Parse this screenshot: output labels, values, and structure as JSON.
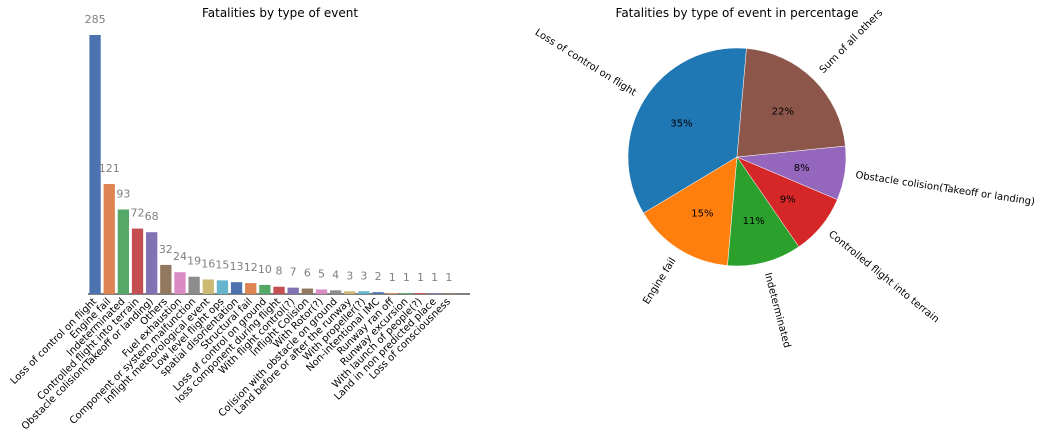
{
  "chart_data": [
    {
      "type": "bar",
      "title": "Fatalities by type of event",
      "xlabel": "",
      "ylabel": "",
      "ylim": [
        0,
        300
      ],
      "grid": false,
      "categories": [
        "Loss of control on flight",
        "Engine fail",
        "Indeterminated",
        "Controlled flight into terrain",
        "Obstacle colision(Takeoff or landing)",
        "Others",
        "Fuel exhaustion",
        "Component or system malfunction",
        "Inflight meteorological event",
        "Low level flight ops",
        "spatial disorientation",
        "Structural fail",
        "Loss of control on ground",
        "loss component during flight",
        "With flight control(?)",
        "Inflight Colision",
        "With Rotor(?)",
        "Colision with obstacle on ground",
        "Land before or after the runway",
        "With propeller(?)",
        "Non-intentional IMC",
        "Runway ran off",
        "Runway excursion",
        "With launch of people(?)",
        "Land in non predicted place",
        "Loss of consciousness"
      ],
      "values": [
        285,
        121,
        93,
        72,
        68,
        32,
        24,
        19,
        16,
        15,
        13,
        12,
        10,
        8,
        7,
        6,
        5,
        4,
        3,
        3,
        2,
        1,
        1,
        1,
        1,
        1
      ],
      "colors": [
        "#4c72b0",
        "#dd8452",
        "#55a868",
        "#c44e52",
        "#8172b3",
        "#937860",
        "#da8bc3",
        "#8c8c8c",
        "#ccb974",
        "#64b5cd"
      ]
    },
    {
      "type": "pie",
      "title": "Fatalities by type  of event in percentage",
      "slices": [
        {
          "label": "Loss of control on flight",
          "value": 35,
          "pct_label": "35%",
          "color": "#1f77b4"
        },
        {
          "label": "Engine fail",
          "value": 15,
          "pct_label": "15%",
          "color": "#ff7f0e"
        },
        {
          "label": "Indeterminated",
          "value": 11,
          "pct_label": "11%",
          "color": "#2ca02c"
        },
        {
          "label": "Controlled flight into terrain",
          "value": 9,
          "pct_label": "9%",
          "color": "#d62728"
        },
        {
          "label": "Obstacle colision(Takeoff or landing)",
          "value": 8,
          "pct_label": "8%",
          "color": "#9467bd"
        },
        {
          "label": "Sum of all others",
          "value": 22,
          "pct_label": "22%",
          "color": "#8c564b"
        }
      ],
      "start_angle_deg": 85,
      "direction": "counterclockwise"
    }
  ]
}
